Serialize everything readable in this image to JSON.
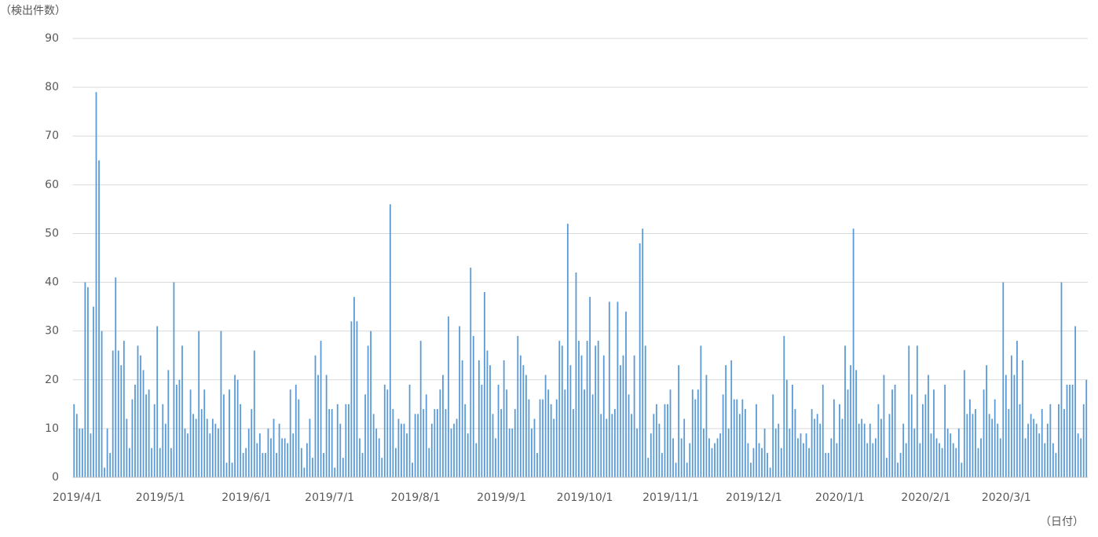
{
  "chart_data": {
    "type": "bar",
    "y_axis_label": "（検出件数）",
    "x_axis_label": "（日付）",
    "color": "#5b9bd5",
    "grid": true,
    "ylim": [
      0,
      90
    ],
    "yticks": [
      0,
      10,
      20,
      30,
      40,
      50,
      60,
      70,
      80,
      90
    ],
    "categories": [
      "2019/4/1",
      null,
      null,
      null,
      null,
      null,
      null,
      null,
      null,
      null,
      null,
      null,
      null,
      null,
      null,
      null,
      null,
      null,
      null,
      null,
      null,
      null,
      null,
      null,
      null,
      null,
      null,
      null,
      null,
      null,
      "2019/5/1",
      null,
      null,
      null,
      null,
      null,
      null,
      null,
      null,
      null,
      null,
      null,
      null,
      null,
      null,
      null,
      null,
      null,
      null,
      null,
      null,
      null,
      null,
      null,
      null,
      null,
      null,
      null,
      null,
      null,
      null,
      "2019/6/1",
      null,
      null,
      null,
      null,
      null,
      null,
      null,
      null,
      null,
      null,
      null,
      null,
      null,
      null,
      null,
      null,
      null,
      null,
      null,
      null,
      null,
      null,
      null,
      null,
      null,
      null,
      null,
      null,
      null,
      "2019/7/1",
      null,
      null,
      null,
      null,
      null,
      null,
      null,
      null,
      null,
      null,
      null,
      null,
      null,
      null,
      null,
      null,
      null,
      null,
      null,
      null,
      null,
      null,
      null,
      null,
      null,
      null,
      null,
      null,
      null,
      null,
      "2019/8/1",
      null,
      null,
      null,
      null,
      null,
      null,
      null,
      null,
      null,
      null,
      null,
      null,
      null,
      null,
      null,
      null,
      null,
      null,
      null,
      null,
      null,
      null,
      null,
      null,
      null,
      null,
      null,
      null,
      null,
      null,
      "2019/9/1",
      null,
      null,
      null,
      null,
      null,
      null,
      null,
      null,
      null,
      null,
      null,
      null,
      null,
      null,
      null,
      null,
      null,
      null,
      null,
      null,
      null,
      null,
      null,
      null,
      null,
      null,
      null,
      null,
      null,
      "2019/10/1",
      null,
      null,
      null,
      null,
      null,
      null,
      null,
      null,
      null,
      null,
      null,
      null,
      null,
      null,
      null,
      null,
      null,
      null,
      null,
      null,
      null,
      null,
      null,
      null,
      null,
      null,
      null,
      null,
      null,
      null,
      "2019/11/1",
      null,
      null,
      null,
      null,
      null,
      null,
      null,
      null,
      null,
      null,
      null,
      null,
      null,
      null,
      null,
      null,
      null,
      null,
      null,
      null,
      null,
      null,
      null,
      null,
      null,
      null,
      null,
      null,
      null,
      "2019/12/1",
      null,
      null,
      null,
      null,
      null,
      null,
      null,
      null,
      null,
      null,
      null,
      null,
      null,
      null,
      null,
      null,
      null,
      null,
      null,
      null,
      null,
      null,
      null,
      null,
      null,
      null,
      null,
      null,
      null,
      null,
      "2020/1/1",
      null,
      null,
      null,
      null,
      null,
      null,
      null,
      null,
      null,
      null,
      null,
      null,
      null,
      null,
      null,
      null,
      null,
      null,
      null,
      null,
      null,
      null,
      null,
      null,
      null,
      null,
      null,
      null,
      null,
      null,
      "2020/2/1",
      null,
      null,
      null,
      null,
      null,
      null,
      null,
      null,
      null,
      null,
      null,
      null,
      null,
      null,
      null,
      null,
      null,
      null,
      null,
      null,
      null,
      null,
      null,
      null,
      null,
      null,
      null,
      null,
      "2020/3/1",
      null,
      null,
      null,
      null,
      null,
      null,
      null,
      null,
      null,
      null,
      null,
      null,
      null,
      null,
      null,
      null,
      null,
      null,
      null,
      null,
      null,
      null,
      null,
      null,
      null,
      null,
      null,
      null,
      null,
      null
    ],
    "values": [
      15,
      13,
      10,
      10,
      40,
      39,
      9,
      35,
      79,
      65,
      30,
      2,
      10,
      5,
      26,
      41,
      26,
      23,
      28,
      12,
      6,
      16,
      19,
      27,
      25,
      22,
      17,
      18,
      6,
      15,
      31,
      6,
      15,
      11,
      22,
      6,
      40,
      19,
      20,
      27,
      10,
      9,
      18,
      13,
      12,
      30,
      14,
      18,
      12,
      9,
      12,
      11,
      10,
      30,
      17,
      3,
      18,
      3,
      21,
      20,
      15,
      5,
      6,
      10,
      14,
      26,
      7,
      9,
      5,
      5,
      10,
      8,
      12,
      5,
      11,
      8,
      8,
      7,
      18,
      9,
      19,
      16,
      6,
      2,
      7,
      12,
      4,
      25,
      21,
      28,
      5,
      21,
      14,
      14,
      2,
      15,
      11,
      4,
      15,
      15,
      32,
      37,
      32,
      8,
      5,
      17,
      27,
      30,
      13,
      10,
      8,
      4,
      19,
      18,
      56,
      14,
      6,
      12,
      11,
      11,
      9,
      19,
      3,
      13,
      13,
      28,
      14,
      17,
      6,
      11,
      14,
      14,
      18,
      21,
      14,
      33,
      10,
      11,
      12,
      31,
      24,
      15,
      9,
      43,
      29,
      7,
      24,
      19,
      38,
      26,
      23,
      13,
      8,
      19,
      14,
      24,
      18,
      10,
      10,
      14,
      29,
      25,
      23,
      21,
      16,
      10,
      12,
      5,
      16,
      16,
      21,
      18,
      15,
      12,
      16,
      28,
      27,
      18,
      52,
      23,
      14,
      42,
      28,
      25,
      18,
      28,
      37,
      17,
      27,
      28,
      13,
      25,
      12,
      36,
      13,
      14,
      36,
      23,
      25,
      34,
      17,
      13,
      25,
      10,
      48,
      51,
      27,
      4,
      9,
      13,
      15,
      11,
      5,
      15,
      15,
      18,
      8,
      3,
      23,
      8,
      12,
      3,
      7,
      18,
      16,
      18,
      27,
      10,
      21,
      8,
      6,
      7,
      8,
      9,
      17,
      23,
      10,
      24,
      16,
      16,
      13,
      16,
      14,
      7,
      3,
      6,
      15,
      7,
      6,
      10,
      5,
      2,
      17,
      10,
      11,
      6,
      29,
      20,
      10,
      19,
      14,
      8,
      9,
      7,
      9,
      6,
      14,
      12,
      13,
      11,
      19,
      5,
      5,
      8,
      16,
      7,
      15,
      12,
      27,
      18,
      23,
      51,
      22,
      11,
      12,
      11,
      7,
      11,
      7,
      8,
      15,
      12,
      21,
      4,
      13,
      18,
      19,
      3,
      5,
      11,
      7,
      27,
      17,
      10,
      27,
      7,
      15,
      17,
      21,
      9,
      18,
      8,
      7,
      6,
      19,
      10,
      9,
      7,
      6,
      10,
      3,
      22,
      13,
      16,
      13,
      14,
      6,
      8,
      18,
      23,
      13,
      12,
      16,
      11,
      8,
      40,
      21,
      14,
      25,
      21,
      28,
      15,
      24,
      8,
      11,
      13,
      12,
      11,
      9,
      14,
      7,
      11,
      15,
      7,
      5,
      15,
      40,
      14,
      19,
      19,
      19,
      31,
      9,
      8,
      15,
      20
    ]
  }
}
